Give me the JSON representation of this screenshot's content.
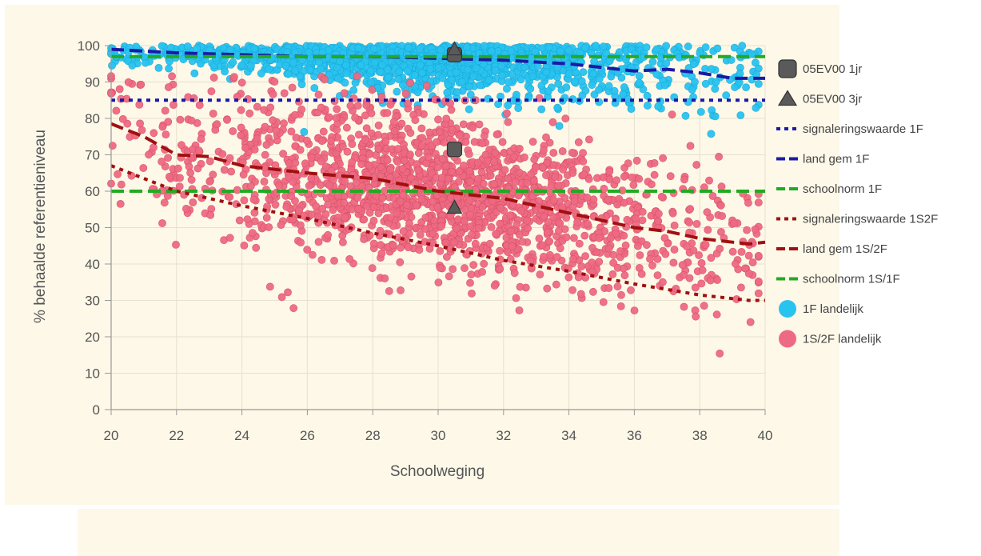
{
  "chart_data": {
    "type": "scatter",
    "xlabel": "Schoolweging",
    "ylabel": "% behaalde referentieniveau",
    "xlim": [
      20,
      40
    ],
    "ylim": [
      0,
      100
    ],
    "x_ticks": [
      20,
      22,
      24,
      26,
      28,
      30,
      32,
      34,
      36,
      38,
      40
    ],
    "y_ticks": [
      0,
      10,
      20,
      30,
      40,
      50,
      60,
      70,
      80,
      90,
      100
    ],
    "grid": true,
    "legend_position": "right",
    "series": [
      {
        "name": "05EV00 1jr",
        "kind": "marker",
        "marker": "rounded-square",
        "color": "#5a5a5a",
        "points": [
          [
            30.5,
            97.5
          ],
          [
            30.5,
            71.5
          ]
        ]
      },
      {
        "name": "05EV00 3jr",
        "kind": "marker",
        "marker": "triangle",
        "color": "#5a5a5a",
        "points": [
          [
            30.5,
            99
          ],
          [
            30.5,
            55.5
          ]
        ]
      },
      {
        "name": "signaleringswaarde 1F",
        "kind": "line",
        "style": "dotted",
        "color": "#1a1aa6",
        "x": [
          20,
          40
        ],
        "y": [
          85,
          85
        ]
      },
      {
        "name": "land gem  1F",
        "kind": "line",
        "style": "dashed",
        "color": "#1a1aa6",
        "x": [
          20,
          22,
          24,
          26,
          28,
          30,
          32,
          34,
          36,
          37,
          38,
          39,
          40
        ],
        "y": [
          99,
          98,
          97.5,
          97,
          97,
          96.5,
          96,
          95,
          93,
          93.5,
          92.5,
          91,
          91
        ]
      },
      {
        "name": "schoolnorm  1F",
        "kind": "line",
        "style": "dashed",
        "color": "#22aa22",
        "x": [
          20,
          40
        ],
        "y": [
          60,
          60
        ]
      },
      {
        "name": "signaleringswaarde 1S2F",
        "kind": "line",
        "style": "dotted",
        "color": "#a01010",
        "x": [
          20,
          22,
          24,
          26,
          28,
          30,
          32,
          34,
          36,
          38,
          39.5,
          40
        ],
        "y": [
          67,
          60,
          56,
          52.5,
          48.5,
          45,
          41,
          38,
          34.5,
          31.5,
          30,
          30
        ]
      },
      {
        "name": "land gem  1S/2F",
        "kind": "line",
        "style": "dashed",
        "color": "#a01010",
        "x": [
          20,
          21,
          22,
          23,
          24,
          26,
          28,
          30,
          32,
          34,
          36,
          37,
          38,
          39.5,
          40
        ],
        "y": [
          78.5,
          75,
          70,
          69.5,
          67,
          65,
          63.5,
          60,
          58,
          54,
          50,
          49,
          47,
          45.5,
          46
        ]
      },
      {
        "name": "schoolnorm 1S/1F",
        "kind": "line",
        "style": "dashed",
        "color": "#22aa22",
        "x": [
          20,
          40
        ],
        "y": [
          97,
          97
        ]
      },
      {
        "name": "1F landelijk",
        "kind": "scatter",
        "color": "#29c3f0"
      },
      {
        "name": "1S/2F landelijk",
        "kind": "scatter",
        "color": "#ee6a82"
      }
    ]
  }
}
